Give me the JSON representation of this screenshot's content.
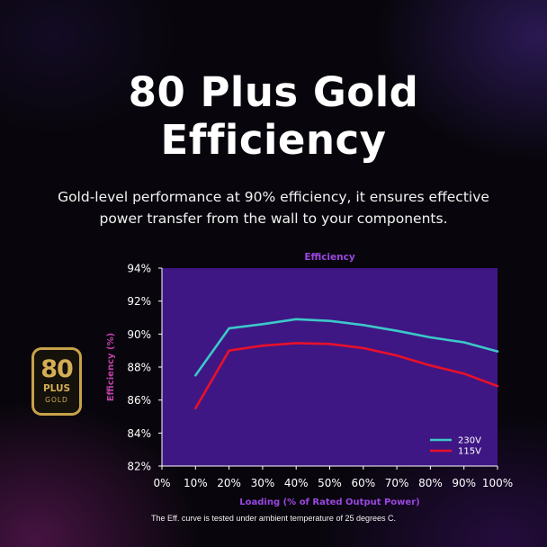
{
  "heading": {
    "line1": "80 Plus Gold",
    "line2": "Efficiency"
  },
  "subtitle": "Gold-level performance at 90% efficiency, it ensures effective power transfer from the wall to your components.",
  "badge": {
    "number": "80",
    "plus": "PLUS",
    "level": "GOLD",
    "icon": "80-plus-gold-badge-icon"
  },
  "footnote": "The Eff. curve is tested under ambient temperature of 25 degrees C.",
  "colors": {
    "plot_bg": "#3e1784",
    "series_230": "#3cc8c8",
    "series_115": "#e8102a",
    "title_purple": "#9a46e0",
    "ylabel_pink": "#c040a8"
  },
  "chart_data": {
    "type": "line",
    "title": "Efficiency",
    "xlabel": "Loading (% of Rated Output Power)",
    "ylabel": "Efficiency (%)",
    "xlim": [
      0,
      100
    ],
    "ylim": [
      82,
      94
    ],
    "x_ticks": [
      "0%",
      "10%",
      "20%",
      "30%",
      "40%",
      "50%",
      "60%",
      "70%",
      "80%",
      "90%",
      "100%"
    ],
    "y_ticks": [
      "82%",
      "84%",
      "86%",
      "88%",
      "90%",
      "92%",
      "94%"
    ],
    "grid": false,
    "legend_position": "bottom-right",
    "series": [
      {
        "name": "230V",
        "color": "#3cc8c8",
        "x": [
          10,
          20,
          30,
          40,
          50,
          60,
          70,
          80,
          90,
          100
        ],
        "values": [
          87.5,
          90.35,
          90.6,
          90.9,
          90.8,
          90.55,
          90.2,
          89.8,
          89.5,
          88.95
        ]
      },
      {
        "name": "115V",
        "color": "#e8102a",
        "x": [
          10,
          20,
          30,
          40,
          50,
          60,
          70,
          80,
          90,
          100
        ],
        "values": [
          85.5,
          89.0,
          89.3,
          89.45,
          89.4,
          89.15,
          88.7,
          88.1,
          87.6,
          86.85
        ]
      }
    ]
  }
}
